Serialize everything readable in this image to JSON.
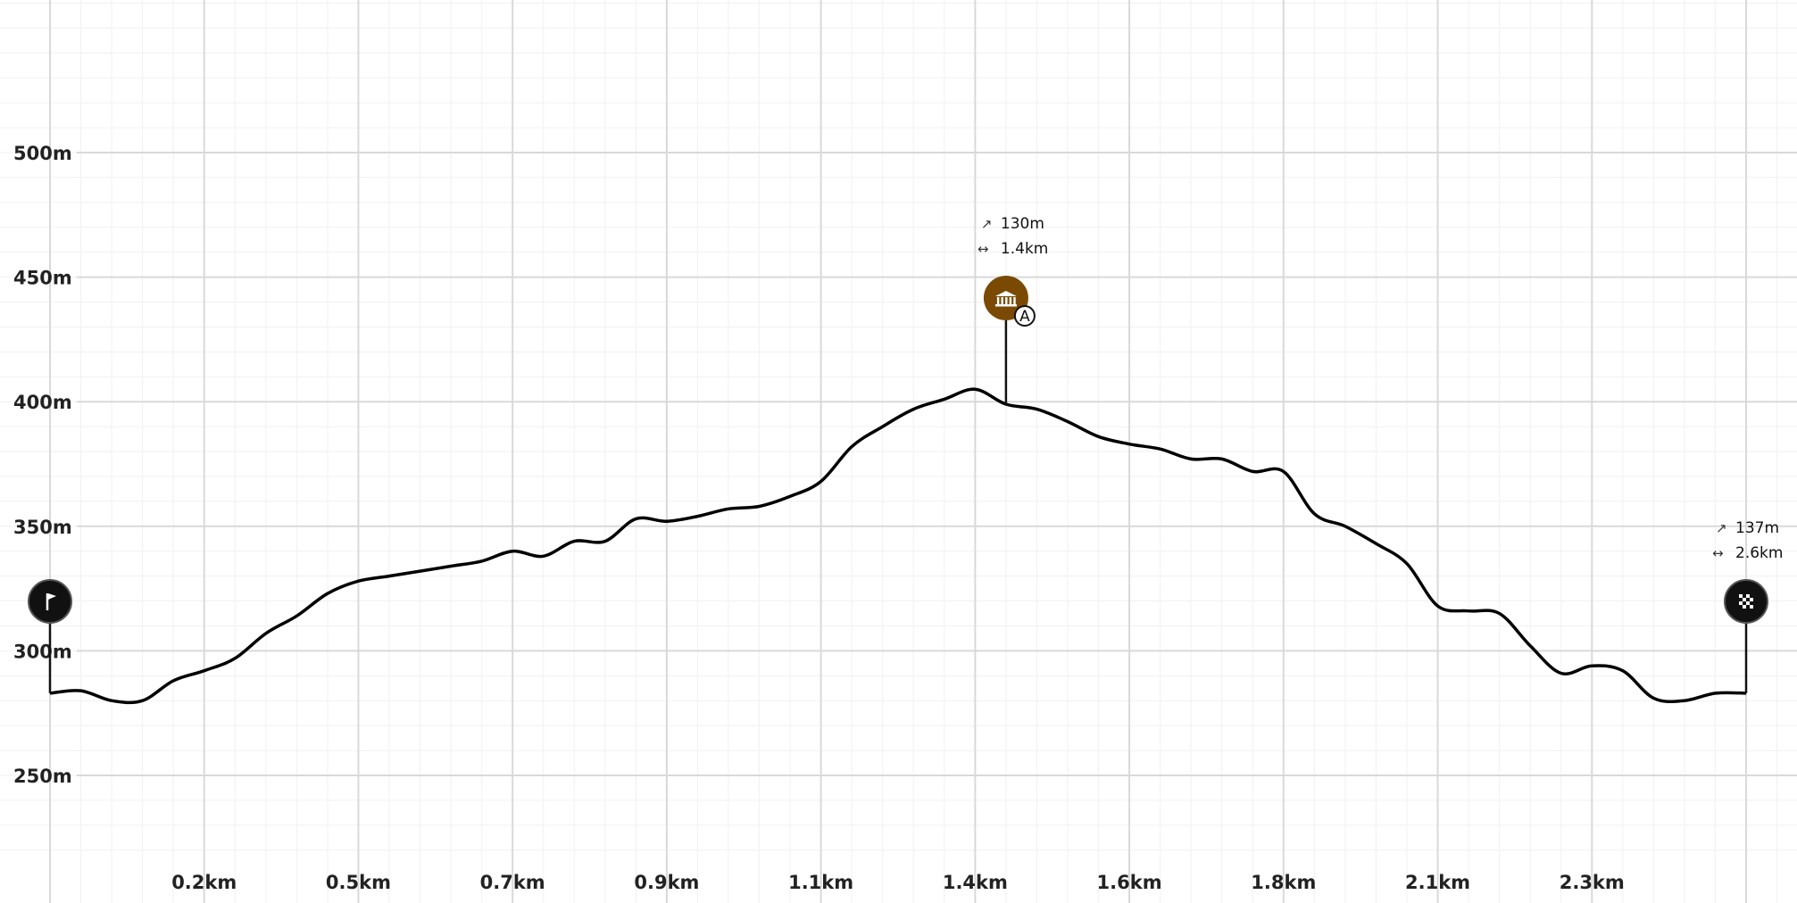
{
  "chart_data": {
    "type": "area",
    "x_unit": "km",
    "y_unit": "m",
    "xlim": [
      0,
      2.8
    ],
    "ylim": [
      220,
      580
    ],
    "y_ticks": [
      {
        "value": 250,
        "label": "250m"
      },
      {
        "value": 300,
        "label": "300m"
      },
      {
        "value": 350,
        "label": "350m"
      },
      {
        "value": 400,
        "label": "400m"
      },
      {
        "value": 450,
        "label": "450m"
      },
      {
        "value": 500,
        "label": "500m"
      }
    ],
    "x_ticks": [
      {
        "value": 0.25,
        "label": "0.2km"
      },
      {
        "value": 0.5,
        "label": "0.5km"
      },
      {
        "value": 0.75,
        "label": "0.7km"
      },
      {
        "value": 1.0,
        "label": "0.9km"
      },
      {
        "value": 1.25,
        "label": "1.1km"
      },
      {
        "value": 1.5,
        "label": "1.4km"
      },
      {
        "value": 1.75,
        "label": "1.6km"
      },
      {
        "value": 2.0,
        "label": "1.8km"
      },
      {
        "value": 2.25,
        "label": "2.1km"
      },
      {
        "value": 2.5,
        "label": "2.3km"
      }
    ],
    "grid": true,
    "x": [
      0,
      0.05,
      0.1,
      0.15,
      0.2,
      0.25,
      0.3,
      0.35,
      0.4,
      0.45,
      0.5,
      0.55,
      0.6,
      0.65,
      0.7,
      0.75,
      0.8,
      0.85,
      0.9,
      0.95,
      1.0,
      1.05,
      1.1,
      1.15,
      1.2,
      1.25,
      1.3,
      1.35,
      1.4,
      1.45,
      1.5,
      1.55,
      1.6,
      1.65,
      1.7,
      1.75,
      1.8,
      1.85,
      1.9,
      1.95,
      2.0,
      2.05,
      2.1,
      2.15,
      2.2,
      2.25,
      2.3,
      2.35,
      2.4,
      2.45,
      2.5,
      2.55,
      2.6,
      2.65,
      2.7,
      2.75
    ],
    "elevation": [
      283,
      284,
      280,
      280,
      288,
      292,
      297,
      307,
      314,
      323,
      328,
      330,
      332,
      334,
      336,
      340,
      338,
      344,
      344,
      353,
      352,
      354,
      357,
      358,
      362,
      368,
      382,
      390,
      397,
      401,
      405,
      399,
      397,
      392,
      386,
      383,
      381,
      377,
      377,
      372,
      372,
      355,
      350,
      343,
      335,
      318,
      316,
      315,
      302,
      291,
      294,
      292,
      281,
      280,
      283,
      283
    ],
    "markers": [
      {
        "name": "start",
        "icon": "flag-icon",
        "x": 0,
        "color": "#111111"
      },
      {
        "name": "A",
        "icon": "museum-icon",
        "label": "A",
        "x": 1.55,
        "color": "#7a4a05",
        "gain": "130m",
        "distance": "1.4km"
      },
      {
        "name": "finish",
        "icon": "checkered-flag-icon",
        "x": 2.75,
        "color": "#111111",
        "gain": "137m",
        "distance": "2.6km"
      }
    ]
  },
  "colors": {
    "line": "#000000",
    "grid_major": "#d9d9d9",
    "grid_minor": "#f1f1f1",
    "poi": "#7a4a05",
    "endpoint": "#111111"
  }
}
